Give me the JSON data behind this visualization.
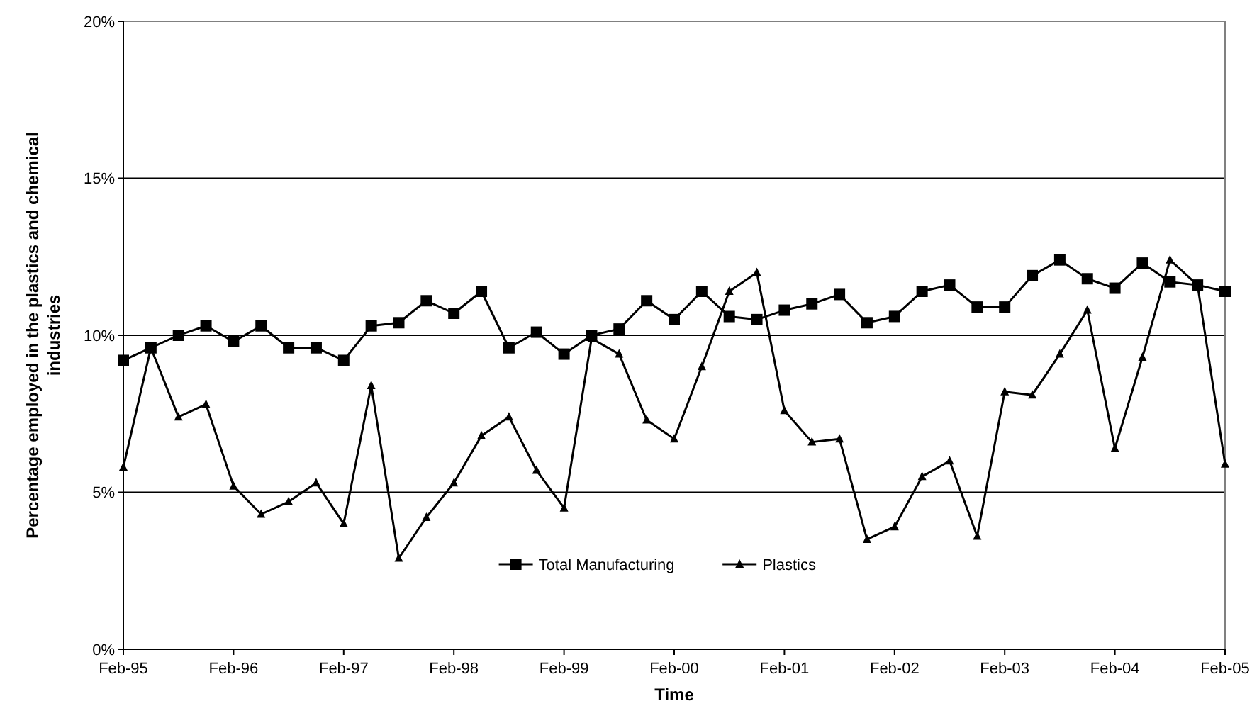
{
  "chart_data": {
    "type": "line",
    "xlabel": "Time",
    "ylabel": "Percentage employed in the plastics and chemical industries",
    "categories": [
      "Feb-95",
      null,
      null,
      null,
      "Feb-96",
      null,
      null,
      null,
      "Feb-97",
      null,
      null,
      null,
      "Feb-98",
      null,
      null,
      null,
      "Feb-99",
      null,
      null,
      null,
      "Feb-00",
      null,
      null,
      null,
      "Feb-01",
      null,
      null,
      null,
      "Feb-02",
      null,
      null,
      null,
      "Feb-03",
      null,
      null,
      null,
      "Feb-04",
      null,
      null,
      null,
      "Feb-05"
    ],
    "series": [
      {
        "name": "Total Manufacturing",
        "color": "#000000",
        "marker": "square",
        "values": [
          9.2,
          9.6,
          10.0,
          10.3,
          9.8,
          10.3,
          9.6,
          9.6,
          9.2,
          10.3,
          10.4,
          11.1,
          10.7,
          11.4,
          9.6,
          10.1,
          9.4,
          10.0,
          10.2,
          11.1,
          10.5,
          11.4,
          10.6,
          10.5,
          10.8,
          11.0,
          11.3,
          10.4,
          10.6,
          11.4,
          11.6,
          10.9,
          10.9,
          11.9,
          12.4,
          11.8,
          11.5,
          12.3,
          11.7,
          11.6,
          11.4
        ]
      },
      {
        "name": "Plastics",
        "color": "#000000",
        "marker": "triangle",
        "values": [
          5.8,
          9.6,
          7.4,
          7.8,
          5.2,
          4.3,
          4.7,
          5.3,
          4.0,
          8.4,
          2.9,
          4.2,
          5.3,
          6.8,
          7.4,
          5.7,
          4.5,
          9.9,
          9.4,
          7.3,
          6.7,
          9.0,
          11.4,
          12.0,
          7.6,
          6.6,
          6.7,
          3.5,
          3.9,
          5.5,
          6.0,
          3.6,
          8.2,
          8.1,
          9.4,
          10.8,
          6.4,
          9.3,
          12.4,
          11.6,
          5.9
        ]
      }
    ],
    "ylim": [
      0,
      20
    ],
    "yticks": [
      {
        "value": 0,
        "label": "0%"
      },
      {
        "value": 5,
        "label": "5%"
      },
      {
        "value": 10,
        "label": "10%"
      },
      {
        "value": 15,
        "label": "15%"
      },
      {
        "value": 20,
        "label": "20%"
      }
    ],
    "grid": "y",
    "legend": "bottom",
    "line_style": "solid"
  }
}
